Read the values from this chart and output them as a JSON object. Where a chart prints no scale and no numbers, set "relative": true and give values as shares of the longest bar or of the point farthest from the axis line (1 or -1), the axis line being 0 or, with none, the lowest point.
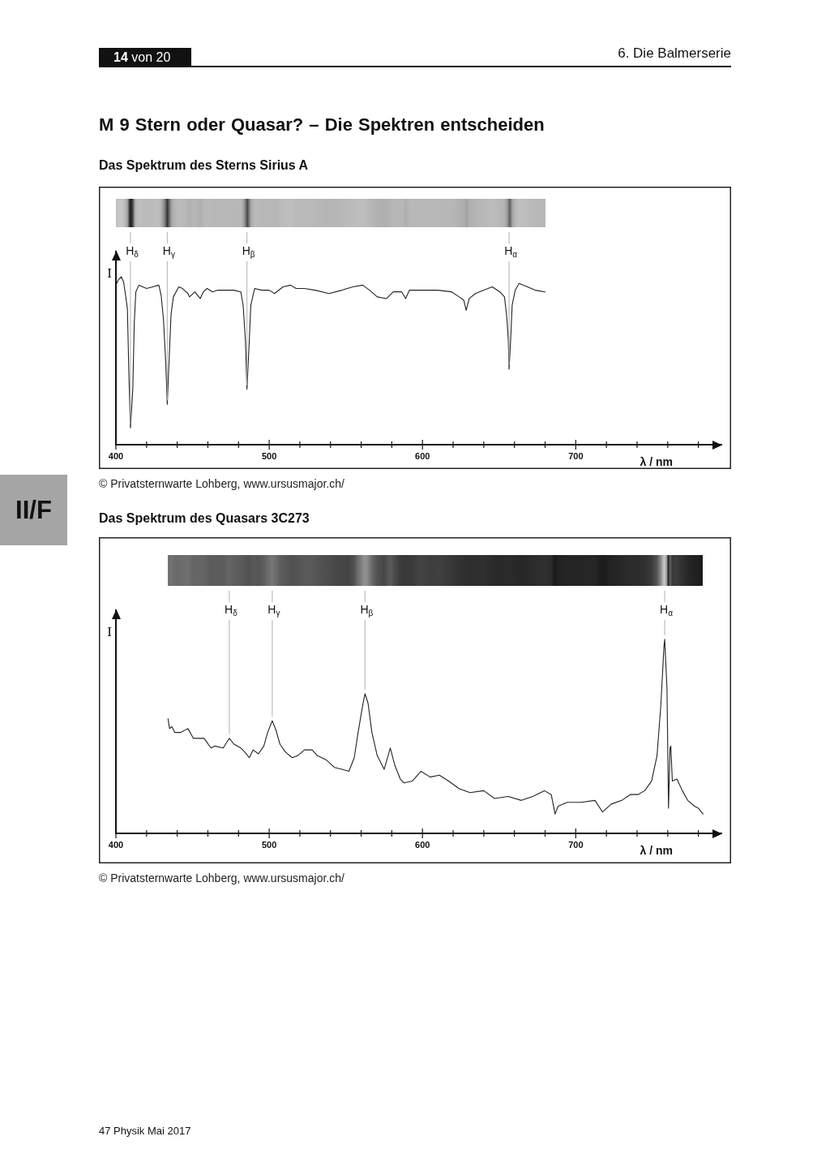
{
  "chart_data": [
    {
      "type": "line",
      "title": "Das Spektrum des Sterns Sirius A",
      "xlabel": "λ / nm",
      "ylabel": "I",
      "relative": true,
      "xlim": [
        400,
        795
      ],
      "xticks": [
        400,
        {
          "value": 420,
          "label": null
        },
        {
          "value": 440,
          "label": null
        },
        {
          "value": 460,
          "label": null
        },
        {
          "value": 480,
          "label": null
        },
        500,
        {
          "value": 520,
          "label": null
        },
        {
          "value": 540,
          "label": null
        },
        {
          "value": 560,
          "label": null
        },
        {
          "value": 580,
          "label": null
        },
        600,
        {
          "value": 620,
          "label": null
        },
        {
          "value": 640,
          "label": null
        },
        {
          "value": 660,
          "label": null
        },
        {
          "value": 680,
          "label": null
        },
        700,
        {
          "value": 720,
          "label": null
        },
        {
          "value": 740,
          "label": null
        },
        {
          "value": 760,
          "label": null
        },
        {
          "value": 780,
          "label": null
        }
      ],
      "x": [
        400,
        401.5,
        403.5,
        405,
        406,
        407.5,
        408.5,
        409.5,
        411,
        412,
        413,
        415,
        420,
        424,
        428,
        429.5,
        431,
        432.5,
        433.5,
        434.5,
        436,
        437.5,
        441,
        443.5,
        447,
        448,
        451.5,
        455,
        457,
        459.5,
        463,
        466.5,
        472,
        477,
        481.5,
        483,
        484.5,
        485.5,
        487,
        488,
        490.5,
        495,
        500,
        503.5,
        509,
        514,
        517.5,
        523,
        530,
        539,
        547.5,
        554.5,
        561,
        565.5,
        570.5,
        576.5,
        581,
        586.5,
        589,
        591.5,
        600,
        610,
        619,
        624,
        627,
        628.5,
        630.5,
        634.5,
        640,
        645.5,
        650.5,
        653.5,
        655,
        656,
        656.5,
        657.5,
        658.5,
        660.5,
        663,
        668.5,
        673.5,
        680
      ],
      "series": [
        {
          "color": "#222222",
          "values": [
            0.95,
            0.98,
            1.0,
            0.97,
            0.91,
            0.81,
            0.41,
            0.1,
            0.33,
            0.73,
            0.91,
            0.95,
            0.93,
            0.94,
            0.95,
            0.89,
            0.75,
            0.49,
            0.24,
            0.46,
            0.78,
            0.88,
            0.94,
            0.93,
            0.9,
            0.88,
            0.91,
            0.87,
            0.91,
            0.93,
            0.91,
            0.92,
            0.92,
            0.92,
            0.91,
            0.83,
            0.62,
            0.33,
            0.62,
            0.83,
            0.93,
            0.92,
            0.92,
            0.9,
            0.94,
            0.95,
            0.93,
            0.93,
            0.92,
            0.9,
            0.92,
            0.94,
            0.95,
            0.92,
            0.88,
            0.87,
            0.91,
            0.91,
            0.87,
            0.92,
            0.92,
            0.92,
            0.91,
            0.88,
            0.86,
            0.8,
            0.87,
            0.9,
            0.92,
            0.94,
            0.91,
            0.88,
            0.76,
            0.62,
            0.45,
            0.62,
            0.83,
            0.92,
            0.96,
            0.94,
            0.92,
            0.91
          ]
        }
      ],
      "annotations": [
        "14 von 20",
        "6. Die Balmerserie",
        "M 9 Stern oder Quasar? – Die Spektren entscheiden",
        "II/F",
        "© Privatsternwarte Lohberg, www.ursusmajor.ch/",
        {
          "text": "H$_{δ}$",
          "x": 409.5,
          "y": 0.1
        },
        {
          "text": "H$_{γ}$",
          "x": 433.5,
          "y": 0.24
        },
        {
          "text": "H$_{β}$",
          "x": 485.5,
          "y": 0.33
        },
        {
          "text": "H$_{α}$",
          "x": 656.5,
          "y": 0.45
        }
      ]
    },
    {
      "type": "line",
      "title": "Das Spektrum des Quasars 3C273",
      "xlabel": "λ / nm",
      "ylabel": "I",
      "relative": true,
      "xlim": [
        400,
        795
      ],
      "xticks": [
        400,
        {
          "value": 420,
          "label": null
        },
        {
          "value": 440,
          "label": null
        },
        {
          "value": 460,
          "label": null
        },
        {
          "value": 480,
          "label": null
        },
        500,
        {
          "value": 520,
          "label": null
        },
        {
          "value": 540,
          "label": null
        },
        {
          "value": 560,
          "label": null
        },
        {
          "value": 580,
          "label": null
        },
        600,
        {
          "value": 620,
          "label": null
        },
        {
          "value": 640,
          "label": null
        },
        {
          "value": 660,
          "label": null
        },
        {
          "value": 680,
          "label": null
        },
        700,
        {
          "value": 720,
          "label": null
        },
        {
          "value": 740,
          "label": null
        },
        {
          "value": 760,
          "label": null
        },
        {
          "value": 780,
          "label": null
        }
      ],
      "x": [
        434,
        435,
        436.5,
        438.5,
        442,
        447,
        450.5,
        454,
        457.5,
        462,
        464.5,
        470,
        474,
        477,
        481.5,
        484,
        487,
        489.5,
        493,
        496.5,
        499,
        502,
        504.5,
        507,
        510.5,
        515,
        518.5,
        523,
        528,
        531.5,
        537,
        542.5,
        547.5,
        552,
        555.5,
        558,
        561,
        562.5,
        564.5,
        567,
        570.5,
        575,
        579,
        582,
        585.5,
        588,
        593.5,
        599,
        605,
        611,
        617,
        624,
        631,
        640,
        647,
        656,
        664.5,
        672,
        679.5,
        684,
        686.5,
        688.5,
        694.5,
        703.5,
        712.5,
        717.5,
        723,
        730,
        735.5,
        740.5,
        745,
        749.5,
        753,
        755.5,
        757.5,
        758,
        759.5,
        760.5,
        761.5,
        762,
        763,
        766,
        769.5,
        773,
        777.5,
        780,
        783
      ],
      "series": [
        {
          "color": "#222222",
          "values": [
            0.59,
            0.54,
            0.55,
            0.52,
            0.52,
            0.54,
            0.49,
            0.49,
            0.49,
            0.44,
            0.45,
            0.44,
            0.49,
            0.46,
            0.44,
            0.42,
            0.39,
            0.43,
            0.41,
            0.45,
            0.52,
            0.58,
            0.53,
            0.46,
            0.42,
            0.39,
            0.4,
            0.43,
            0.43,
            0.4,
            0.38,
            0.34,
            0.33,
            0.32,
            0.39,
            0.52,
            0.66,
            0.72,
            0.67,
            0.52,
            0.4,
            0.33,
            0.44,
            0.35,
            0.28,
            0.26,
            0.27,
            0.32,
            0.29,
            0.3,
            0.27,
            0.23,
            0.21,
            0.22,
            0.18,
            0.19,
            0.17,
            0.19,
            0.22,
            0.2,
            0.1,
            0.14,
            0.16,
            0.16,
            0.17,
            0.11,
            0.15,
            0.17,
            0.2,
            0.2,
            0.22,
            0.27,
            0.4,
            0.66,
            0.96,
            1.0,
            0.75,
            0.13,
            0.44,
            0.45,
            0.27,
            0.28,
            0.22,
            0.17,
            0.14,
            0.13,
            0.1
          ]
        }
      ],
      "annotations": [
        "© Privatsternwarte Lohberg, www.ursusmajor.ch/",
        "47 Physik Mai 2017",
        {
          "text": "H$_{δ}$",
          "x": 474,
          "y": 0.49
        },
        {
          "text": "H$_{γ}$",
          "x": 502,
          "y": 0.58
        },
        {
          "text": "H$_{β}$",
          "x": 562.5,
          "y": 0.72
        },
        {
          "text": "H$_{α}$",
          "x": 758,
          "y": 1.0
        }
      ]
    }
  ]
}
